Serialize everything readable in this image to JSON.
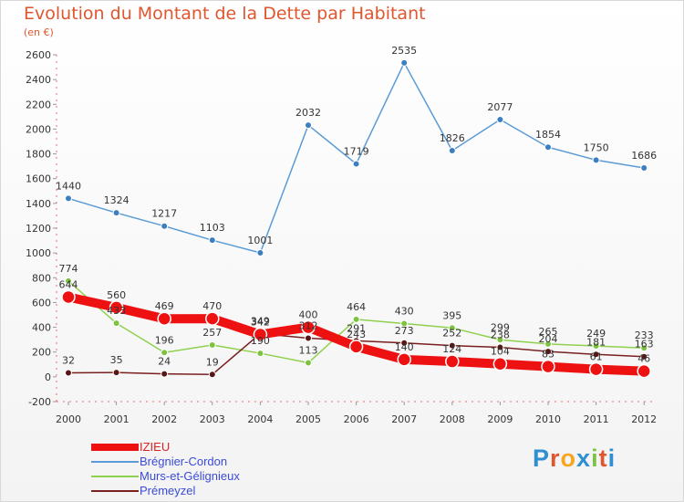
{
  "title": "Evolution du Montant de la Dette par Habitant",
  "subtitle": "(en €)",
  "logo": {
    "text": "Proxiti",
    "letters": [
      "P",
      "r",
      "o",
      "x",
      "i",
      "t",
      "i"
    ],
    "colors": [
      "#2f8fd0",
      "#e0562f",
      "#f5a623",
      "#2f8fd0",
      "#7cc242",
      "#e0562f",
      "#2f8fd0"
    ]
  },
  "chart_data": {
    "type": "line",
    "x": [
      "2000",
      "2001",
      "2002",
      "2003",
      "2004",
      "2005",
      "2006",
      "2007",
      "2008",
      "2009",
      "2010",
      "2011",
      "2012"
    ],
    "ylim": [
      -200,
      2600
    ],
    "yticks": [
      -200,
      0,
      200,
      400,
      600,
      800,
      1000,
      1200,
      1400,
      1600,
      1800,
      2000,
      2200,
      2400,
      2600
    ],
    "grid": false,
    "legend_position": "bottom-left",
    "series": [
      {
        "name": "IZIEU",
        "color": "#ee1111",
        "width": 10,
        "labels": true,
        "values": [
          644,
          560,
          469,
          470,
          342,
          400,
          243,
          140,
          124,
          104,
          83,
          61,
          46
        ],
        "label_text": [
          "644",
          "560",
          "469",
          "470",
          "342",
          "400",
          "243",
          "140",
          "124",
          "104",
          "83",
          "61",
          "46"
        ]
      },
      {
        "name": "Brégnier-Cordon",
        "color": "#5b9bd5",
        "width": 1.5,
        "labels": true,
        "values": [
          1440,
          1324,
          1217,
          1103,
          1001,
          2032,
          1719,
          2535,
          1826,
          2077,
          1854,
          1750,
          1686
        ],
        "label_text": [
          "1440",
          "1324",
          "1217",
          "1103",
          "1001",
          "2032",
          "1719",
          "2535",
          "1826",
          "2077",
          "1854",
          "1750",
          "1686"
        ]
      },
      {
        "name": "Murs-et-Gélignieux",
        "color": "#8fd14f",
        "width": 1.5,
        "labels": true,
        "values": [
          774,
          433,
          196,
          257,
          190,
          113,
          464,
          430,
          395,
          299,
          265,
          249,
          233
        ],
        "label_text": [
          "774",
          "433",
          "196",
          "257",
          "190",
          "113",
          "464",
          "430",
          "395",
          "299",
          "265",
          "249",
          "233"
        ]
      },
      {
        "name": "Prémeyzel",
        "color": "#7a1f1f",
        "width": 1.5,
        "labels": true,
        "values": [
          32,
          35,
          24,
          19,
          349,
          312,
          291,
          273,
          252,
          238,
          204,
          181,
          163
        ],
        "label_text": [
          "32",
          "35",
          "24",
          "19",
          "349",
          "312",
          "291",
          "273",
          "252",
          "238",
          "204",
          "181",
          "163"
        ]
      }
    ]
  }
}
